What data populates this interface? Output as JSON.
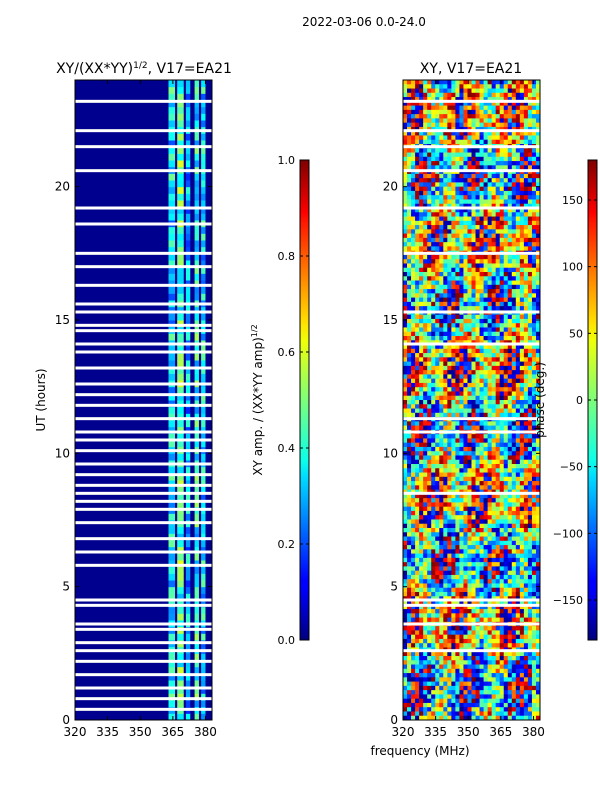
{
  "figure": {
    "suptitle": "2022-03-06 0.0-24.0",
    "xlabel_shared": "frequency (MHz)"
  },
  "chart_data": [
    {
      "type": "heatmap",
      "title_main": "XY/(XX*YY)",
      "title_sup": "1/2",
      "title_tail": ", V17=EA21",
      "xlabel": "",
      "ylabel": "UT (hours)",
      "xlim": [
        320,
        383
      ],
      "ylim": [
        0,
        24
      ],
      "xticks": [
        320,
        335,
        350,
        365,
        380
      ],
      "xtick_labels": [
        "320",
        "335",
        "350",
        "365",
        "380"
      ],
      "yticks": [
        0,
        5,
        10,
        15,
        20
      ],
      "ytick_labels": [
        "0",
        "5",
        "10",
        "15",
        "20"
      ],
      "colormap": "jet",
      "background_value": 0.02,
      "active_bands": [
        {
          "from": 363,
          "to": 366,
          "value": 0.35
        },
        {
          "from": 367,
          "to": 370,
          "value": 0.45
        },
        {
          "from": 371,
          "to": 373,
          "value": 0.3
        },
        {
          "from": 375,
          "to": 377,
          "value": 0.4
        },
        {
          "from": 378,
          "to": 380,
          "value": 0.35
        }
      ],
      "flagged_rows_ut": [
        23.2,
        22.1,
        21.5,
        20.6,
        19.2,
        18.6,
        17.5,
        17.0,
        16.3,
        15.6,
        15.3,
        14.8,
        14.6,
        14.1,
        13.8,
        13.2,
        12.6,
        12.2,
        11.8,
        11.3,
        10.8,
        10.5,
        10.1,
        9.6,
        9.2,
        8.8,
        8.5,
        8.2,
        7.9,
        7.4,
        6.8,
        6.3,
        5.8,
        4.5,
        4.3,
        3.6,
        3.4,
        2.9,
        2.6,
        2.2,
        1.7,
        1.2,
        0.8,
        0.4
      ],
      "colorbar": {
        "label_main": "XY amp. / (XX*YY amp)",
        "label_sup": "1/2",
        "range": [
          0.0,
          1.0
        ],
        "ticks": [
          0.0,
          0.2,
          0.4,
          0.6,
          0.8,
          1.0
        ],
        "tick_labels": [
          "0.0",
          "0.2",
          "0.4",
          "0.6",
          "0.8",
          "1.0"
        ]
      }
    },
    {
      "type": "heatmap",
      "title": "XY, V17=EA21",
      "xlabel": "",
      "ylabel": "",
      "xlim": [
        320,
        383
      ],
      "ylim": [
        0,
        24
      ],
      "xticks": [
        320,
        335,
        350,
        365,
        380
      ],
      "xtick_labels": [
        "320",
        "335",
        "350",
        "365",
        "380"
      ],
      "yticks": [
        0,
        5,
        10,
        15,
        20
      ],
      "ytick_labels": [
        "0",
        "5",
        "10",
        "15",
        "20"
      ],
      "colormap": "jet",
      "value_range": [
        -180,
        180
      ],
      "flagged_rows_ut": [
        23.2,
        22.1,
        21.5,
        20.6,
        19.2,
        17.5,
        15.3,
        14.1,
        11.3,
        10.8,
        8.5,
        4.5,
        4.3,
        3.6,
        2.6
      ],
      "colorbar": {
        "label": "phase (deg.)",
        "range": [
          -180,
          180
        ],
        "ticks": [
          -150,
          -100,
          -50,
          0,
          50,
          100,
          150
        ],
        "tick_labels": [
          "−150",
          "−100",
          "−50",
          "0",
          "50",
          "100",
          "150"
        ]
      }
    }
  ]
}
